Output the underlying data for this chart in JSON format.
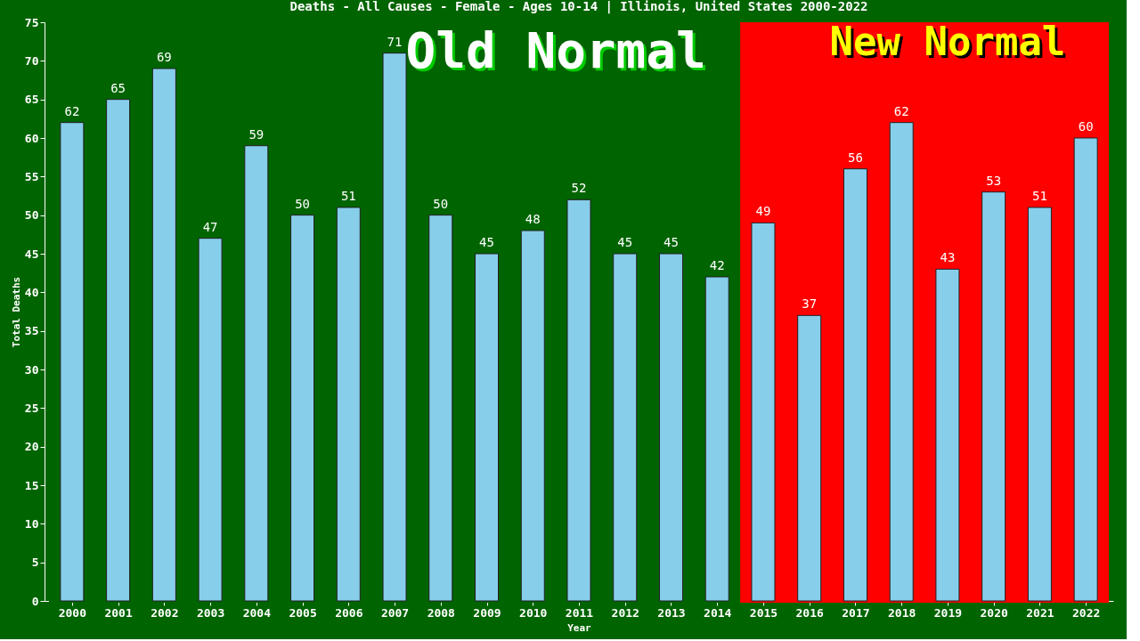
{
  "chart_data": {
    "type": "bar",
    "title": "Deaths - All Causes - Female - Ages 10-14 | Illinois, United States 2000-2022",
    "xlabel": "Year",
    "ylabel": "Total Deaths",
    "categories": [
      "2000",
      "2001",
      "2002",
      "2003",
      "2004",
      "2005",
      "2006",
      "2007",
      "2008",
      "2009",
      "2010",
      "2011",
      "2012",
      "2013",
      "2014",
      "2015",
      "2016",
      "2017",
      "2018",
      "2019",
      "2020",
      "2021",
      "2022"
    ],
    "values": [
      62,
      65,
      69,
      47,
      59,
      50,
      51,
      71,
      50,
      45,
      48,
      52,
      45,
      45,
      42,
      49,
      37,
      56,
      62,
      43,
      53,
      51,
      60
    ],
    "color": "#87ceeb",
    "ylim": [
      0,
      75
    ],
    "yticks": [
      0,
      5,
      10,
      15,
      20,
      25,
      30,
      35,
      40,
      45,
      50,
      55,
      60,
      65,
      70,
      75
    ],
    "bands": [
      {
        "axis": "x",
        "from": "2000",
        "to": "2014",
        "label": "Old Normal",
        "color": "#006400"
      },
      {
        "axis": "x",
        "from": "2015",
        "to": "2022",
        "label": "New Normal",
        "color": "#ff0000"
      }
    ],
    "data_labels": true,
    "grid": false
  }
}
